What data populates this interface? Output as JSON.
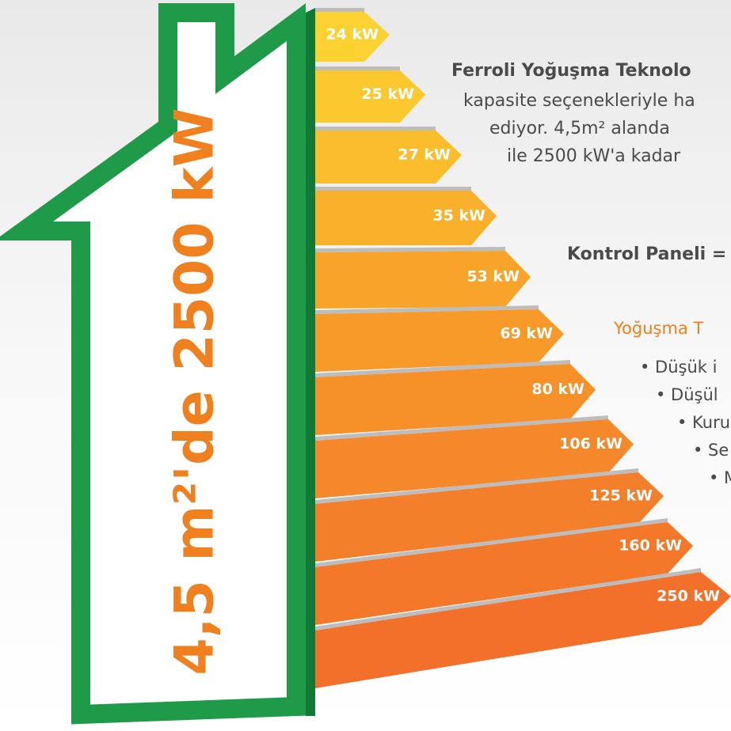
{
  "house": {
    "label": "4,5 m²'de 2500 kW"
  },
  "bars": [
    "24 kW",
    "25 kW",
    "27 kW",
    "35 kW",
    "53 kW",
    "69 kW",
    "80 kW",
    "106 kW",
    "125 kW",
    "160 kW",
    "250 kW"
  ],
  "text": {
    "intro": [
      "Ferroli Yoğuşma Teknolo",
      "kapasite seçenekleriyle ha",
      "ediyor. 4,5m² alanda",
      "ile 2500 kW'a kadar"
    ],
    "panel": "Kontrol Paneli =",
    "section": "Yoğuşma T",
    "bullets": [
      "• Düşük i",
      "• Düşül",
      "• Kuru",
      "• Se",
      "• M"
    ]
  }
}
